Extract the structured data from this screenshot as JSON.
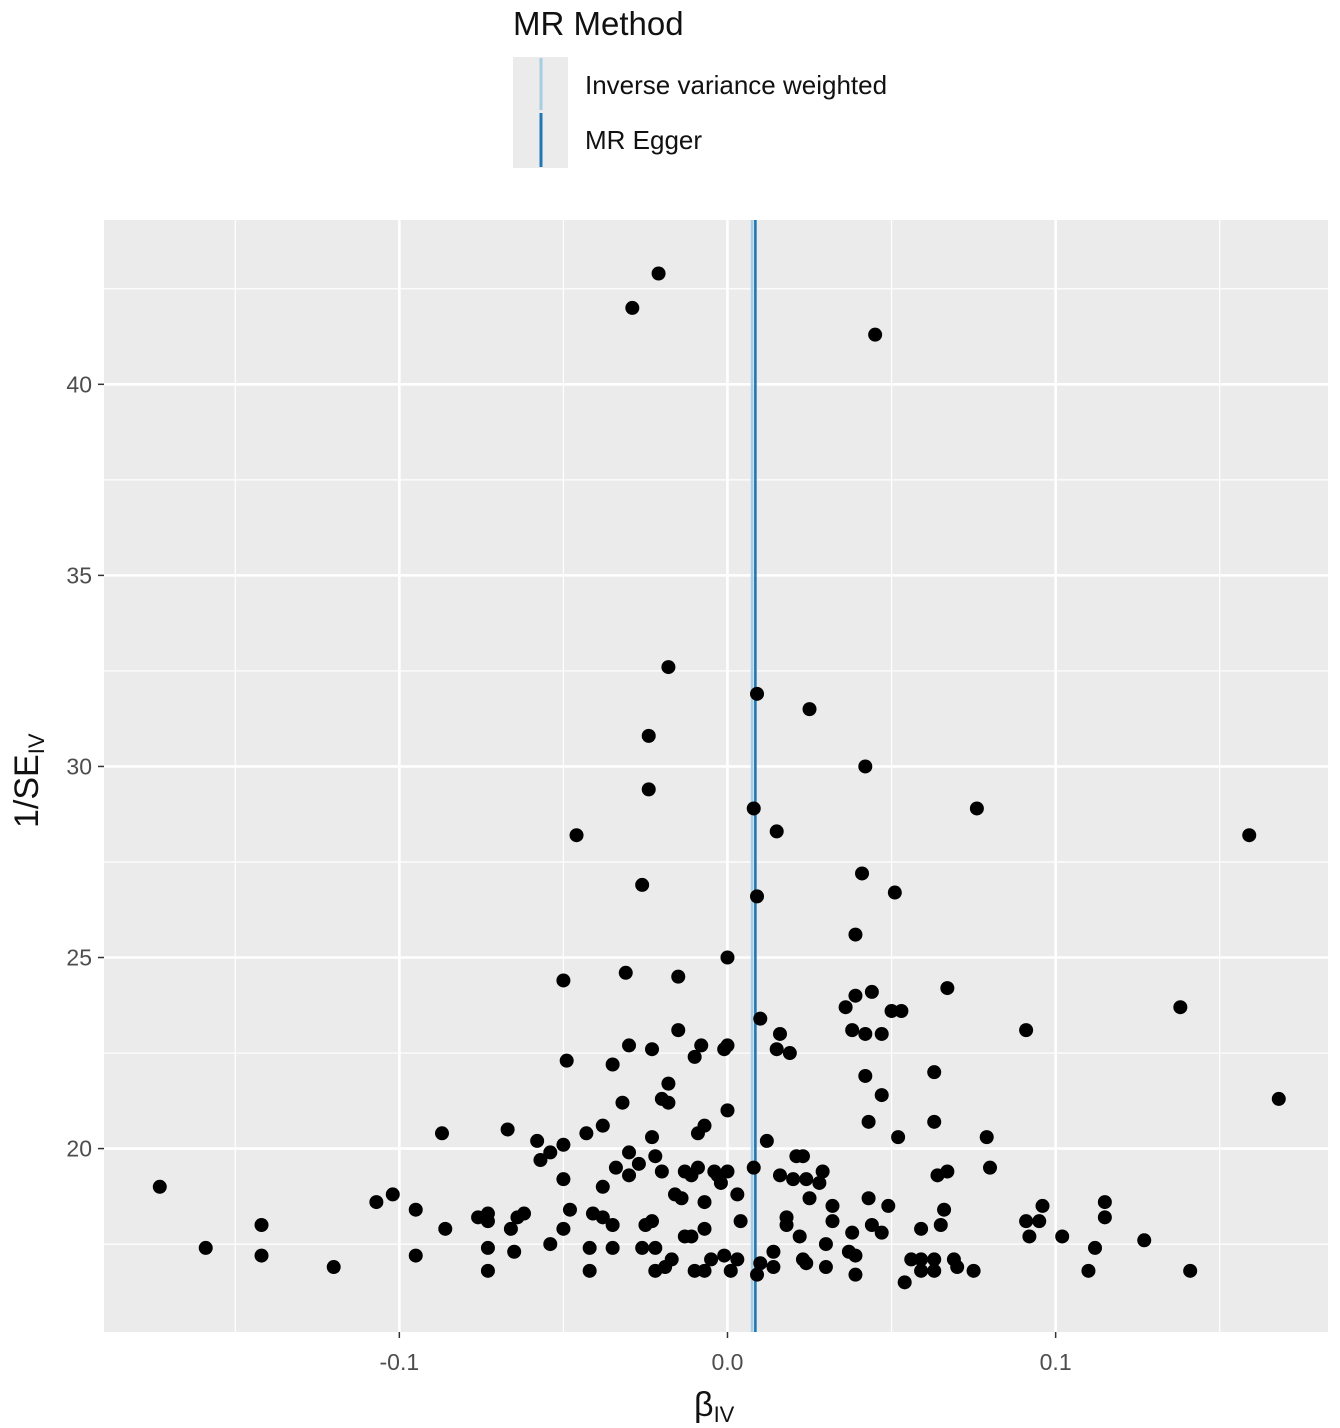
{
  "chart_data": {
    "type": "scatter",
    "legend": {
      "title": "MR Method",
      "placement": "top",
      "items": [
        {
          "label": "Inverse variance weighted",
          "color": "#a6cee3"
        },
        {
          "label": "MR Egger",
          "color": "#1f78b4"
        }
      ]
    },
    "xlabel": {
      "main": "β",
      "sub": "IV"
    },
    "ylabel": {
      "main": "1/SE",
      "sub": "IV"
    },
    "xlim": [
      -0.19,
      0.183
    ],
    "ylim": [
      15.2,
      44.3
    ],
    "x_ticks": [
      {
        "value": -0.1,
        "label": "-0.1"
      },
      {
        "value": 0.0,
        "label": "0.0"
      },
      {
        "value": 0.1,
        "label": "0.1"
      }
    ],
    "y_ticks": [
      {
        "value": 20,
        "label": "20"
      },
      {
        "value": 25,
        "label": "25"
      },
      {
        "value": 30,
        "label": "30"
      },
      {
        "value": 35,
        "label": "35"
      },
      {
        "value": 40,
        "label": "40"
      }
    ],
    "grid": true,
    "background": "#ebebeb",
    "point_color": "#000000",
    "reference_lines": [
      {
        "method": "Inverse variance weighted",
        "slope_x": 0.0075,
        "color": "#a6cee3"
      },
      {
        "method": "MR Egger",
        "slope_x": 0.0085,
        "color": "#1f78b4"
      }
    ],
    "points": [
      [
        -0.021,
        42.9
      ],
      [
        -0.029,
        42.0
      ],
      [
        0.045,
        41.3
      ],
      [
        -0.018,
        32.6
      ],
      [
        0.009,
        31.9
      ],
      [
        0.025,
        31.5
      ],
      [
        -0.024,
        30.8
      ],
      [
        0.042,
        30.0
      ],
      [
        -0.024,
        29.4
      ],
      [
        0.076,
        28.9
      ],
      [
        0.008,
        28.9
      ],
      [
        -0.046,
        28.2
      ],
      [
        0.015,
        28.3
      ],
      [
        0.159,
        28.2
      ],
      [
        -0.026,
        26.9
      ],
      [
        0.041,
        27.2
      ],
      [
        0.051,
        26.7
      ],
      [
        0.009,
        26.6
      ],
      [
        0.039,
        25.6
      ],
      [
        0.0,
        25.0
      ],
      [
        -0.05,
        24.4
      ],
      [
        -0.031,
        24.6
      ],
      [
        -0.015,
        24.5
      ],
      [
        0.067,
        24.2
      ],
      [
        0.044,
        24.1
      ],
      [
        0.039,
        24.0
      ],
      [
        0.036,
        23.7
      ],
      [
        0.053,
        23.6
      ],
      [
        0.05,
        23.6
      ],
      [
        0.138,
        23.7
      ],
      [
        0.01,
        23.4
      ],
      [
        -0.015,
        23.1
      ],
      [
        0.038,
        23.1
      ],
      [
        0.042,
        23.0
      ],
      [
        0.047,
        23.0
      ],
      [
        0.016,
        23.0
      ],
      [
        0.091,
        23.1
      ],
      [
        -0.03,
        22.7
      ],
      [
        -0.008,
        22.7
      ],
      [
        0.0,
        22.7
      ],
      [
        -0.023,
        22.6
      ],
      [
        0.015,
        22.6
      ],
      [
        -0.001,
        22.6
      ],
      [
        -0.01,
        22.4
      ],
      [
        0.019,
        22.5
      ],
      [
        -0.049,
        22.3
      ],
      [
        -0.035,
        22.2
      ],
      [
        0.063,
        22.0
      ],
      [
        0.042,
        21.9
      ],
      [
        -0.018,
        21.7
      ],
      [
        0.047,
        21.4
      ],
      [
        -0.02,
        21.3
      ],
      [
        -0.018,
        21.2
      ],
      [
        0.168,
        21.3
      ],
      [
        -0.032,
        21.2
      ],
      [
        0.0,
        21.0
      ],
      [
        0.043,
        20.7
      ],
      [
        0.063,
        20.7
      ],
      [
        -0.007,
        20.6
      ],
      [
        -0.067,
        20.5
      ],
      [
        -0.038,
        20.6
      ],
      [
        -0.043,
        20.4
      ],
      [
        -0.009,
        20.4
      ],
      [
        -0.087,
        20.4
      ],
      [
        0.052,
        20.3
      ],
      [
        0.079,
        20.3
      ],
      [
        -0.058,
        20.2
      ],
      [
        0.012,
        20.2
      ],
      [
        -0.023,
        20.3
      ],
      [
        -0.05,
        20.1
      ],
      [
        -0.054,
        19.9
      ],
      [
        -0.03,
        19.9
      ],
      [
        -0.022,
        19.8
      ],
      [
        0.021,
        19.8
      ],
      [
        0.023,
        19.8
      ],
      [
        -0.057,
        19.7
      ],
      [
        -0.027,
        19.6
      ],
      [
        -0.034,
        19.5
      ],
      [
        -0.009,
        19.5
      ],
      [
        0.08,
        19.5
      ],
      [
        -0.02,
        19.4
      ],
      [
        0.008,
        19.5
      ],
      [
        -0.013,
        19.4
      ],
      [
        -0.004,
        19.4
      ],
      [
        0.029,
        19.4
      ],
      [
        0.067,
        19.4
      ],
      [
        0.0,
        19.4
      ],
      [
        -0.03,
        19.3
      ],
      [
        0.016,
        19.3
      ],
      [
        -0.011,
        19.3
      ],
      [
        0.064,
        19.3
      ],
      [
        -0.003,
        19.3
      ],
      [
        0.024,
        19.2
      ],
      [
        0.02,
        19.2
      ],
      [
        -0.05,
        19.2
      ],
      [
        0.028,
        19.1
      ],
      [
        -0.002,
        19.1
      ],
      [
        -0.038,
        19.0
      ],
      [
        -0.173,
        19.0
      ],
      [
        0.003,
        18.8
      ],
      [
        -0.016,
        18.8
      ],
      [
        0.043,
        18.7
      ],
      [
        -0.102,
        18.8
      ],
      [
        -0.014,
        18.7
      ],
      [
        0.025,
        18.7
      ],
      [
        -0.107,
        18.6
      ],
      [
        -0.007,
        18.6
      ],
      [
        0.032,
        18.5
      ],
      [
        0.115,
        18.6
      ],
      [
        0.049,
        18.5
      ],
      [
        0.096,
        18.5
      ],
      [
        -0.095,
        18.4
      ],
      [
        -0.048,
        18.4
      ],
      [
        0.066,
        18.4
      ],
      [
        -0.041,
        18.3
      ],
      [
        -0.073,
        18.3
      ],
      [
        -0.062,
        18.3
      ],
      [
        -0.076,
        18.2
      ],
      [
        -0.038,
        18.2
      ],
      [
        0.018,
        18.2
      ],
      [
        0.115,
        18.2
      ],
      [
        -0.064,
        18.2
      ],
      [
        -0.073,
        18.1
      ],
      [
        -0.023,
        18.1
      ],
      [
        0.032,
        18.1
      ],
      [
        0.095,
        18.1
      ],
      [
        0.004,
        18.1
      ],
      [
        -0.025,
        18.0
      ],
      [
        0.091,
        18.1
      ],
      [
        -0.142,
        18.0
      ],
      [
        -0.035,
        18.0
      ],
      [
        -0.05,
        17.9
      ],
      [
        0.065,
        18.0
      ],
      [
        0.044,
        18.0
      ],
      [
        -0.066,
        17.9
      ],
      [
        -0.086,
        17.9
      ],
      [
        0.018,
        18.0
      ],
      [
        -0.007,
        17.9
      ],
      [
        0.059,
        17.9
      ],
      [
        0.047,
        17.8
      ],
      [
        0.038,
        17.8
      ],
      [
        -0.013,
        17.7
      ],
      [
        0.022,
        17.7
      ],
      [
        -0.011,
        17.7
      ],
      [
        0.102,
        17.7
      ],
      [
        0.092,
        17.7
      ],
      [
        -0.042,
        17.4
      ],
      [
        0.127,
        17.6
      ],
      [
        -0.054,
        17.5
      ],
      [
        0.03,
        17.5
      ],
      [
        -0.026,
        17.4
      ],
      [
        -0.073,
        17.4
      ],
      [
        -0.159,
        17.4
      ],
      [
        -0.035,
        17.4
      ],
      [
        0.112,
        17.4
      ],
      [
        -0.022,
        17.4
      ],
      [
        -0.065,
        17.3
      ],
      [
        0.014,
        17.3
      ],
      [
        0.037,
        17.3
      ],
      [
        0.039,
        17.2
      ],
      [
        -0.142,
        17.2
      ],
      [
        -0.095,
        17.2
      ],
      [
        -0.001,
        17.2
      ],
      [
        0.003,
        17.1
      ],
      [
        -0.005,
        17.1
      ],
      [
        0.056,
        17.1
      ],
      [
        0.059,
        17.1
      ],
      [
        -0.017,
        17.1
      ],
      [
        0.069,
        17.1
      ],
      [
        0.023,
        17.1
      ],
      [
        0.063,
        17.1
      ],
      [
        0.01,
        17.0
      ],
      [
        -0.12,
        16.9
      ],
      [
        -0.019,
        16.9
      ],
      [
        -0.01,
        16.8
      ],
      [
        0.03,
        16.9
      ],
      [
        0.014,
        16.9
      ],
      [
        0.07,
        16.9
      ],
      [
        0.024,
        17.0
      ],
      [
        -0.007,
        16.8
      ],
      [
        -0.022,
        16.8
      ],
      [
        0.059,
        16.8
      ],
      [
        0.001,
        16.8
      ],
      [
        0.063,
        16.8
      ],
      [
        0.11,
        16.8
      ],
      [
        0.075,
        16.8
      ],
      [
        -0.042,
        16.8
      ],
      [
        0.141,
        16.8
      ],
      [
        -0.073,
        16.8
      ],
      [
        0.039,
        16.7
      ],
      [
        0.009,
        16.7
      ],
      [
        0.054,
        16.5
      ]
    ]
  }
}
